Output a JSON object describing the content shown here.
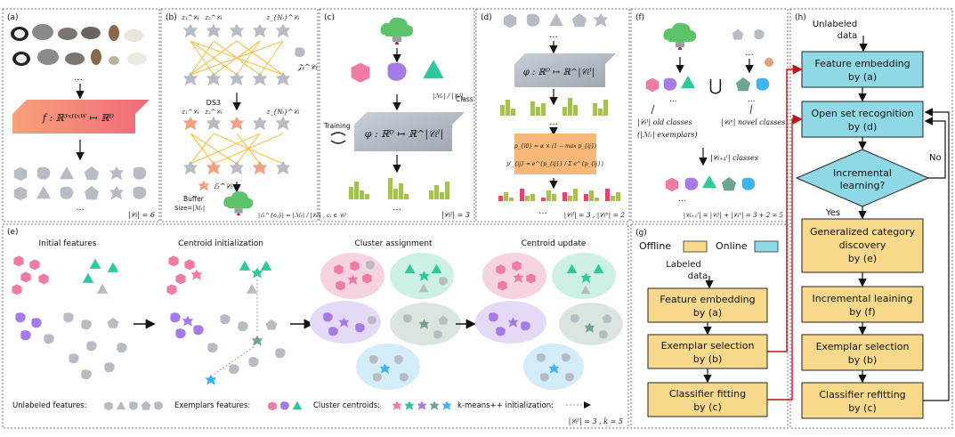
{
  "panels": {
    "a": {
      "tag": "(a)",
      "formula": "f : ℝ³ˣᴴˣᵂ ↦ ℝᴰ",
      "ellipsis": "...",
      "count": "|𝒞ₜ| = 6"
    },
    "b": {
      "tag": "(b)",
      "set_label": "𝒵ₜ^𝒞ₜ",
      "row_labels_top": [
        "z₁^𝒞ₜ",
        "z₂^𝒞ₜ",
        "z_{Nₜ}^𝒞ₜ"
      ],
      "ds3": "DS3",
      "row_labels_bottom": [
        "z₁^𝒞ₜ",
        "z₂^𝒞ₜ",
        "z_{Nₜ}^𝒞ₜ"
      ],
      "exemplar_set": "ℰₜ^𝒞ₜ",
      "buffer": "Buffer",
      "buffer_size": "Size=|ℳᵣ|",
      "formula": "|ℰₜ^{cⱼ}| = |ℳᵣ| / |𝒞ₜˡ| , cⱼ ∈ 𝒞ₜˡ"
    },
    "c": {
      "tag": "(c)",
      "per_class": "|ℳᵣ| / |𝒞ₜˡ|",
      "class_label": "Class",
      "training": "Training",
      "formula": "φ : ℝᴰ ↦ ℝ^|𝒞ₜˡ|",
      "count": "|𝒞ₜˡ| = 3"
    },
    "d": {
      "tag": "(d)",
      "formula": "φ : ℝᴰ ↦ ℝ^|𝒞ₜˡ|",
      "eq1": "p_{i0} = α × (1 − max p_{ij})",
      "eq2": "p'_{ij} = e^{p_{ij}} / Σ e^{p_{ij}}",
      "count": "|𝒞ₜˡ| = 3 , |𝒞ₜⁿ| = 2"
    },
    "f": {
      "tag": "(f)",
      "union": "⋃",
      "old_classes": "|𝒞ₜˡ| old classes",
      "exemplars": "(|ℳᵣ| exemplars)",
      "novel_classes": "|𝒞ₜⁿ| novel classes",
      "next_classes": "|𝒞ₜ₊₁ˡ| classes",
      "count": "|𝒞ₜ₊₁ˡ| = |𝒞ₜˡ| + |𝒞ₜⁿ| = 3 + 2 = 5"
    },
    "e": {
      "tag": "(e)",
      "stages": [
        "Initial features",
        "Centroid initialization",
        "Cluster assignment",
        "Centroid update"
      ],
      "legend_unlabeled": "Unlabeled features:",
      "legend_exemplars": "Exemplars features:",
      "legend_centroids": "Cluster centroids:",
      "legend_kmeans": "k-means++ initialization:",
      "count": "|𝒞ₜˡ| = 3 , k = 5"
    },
    "g": {
      "tag": "(g)",
      "offline": "Offline",
      "online": "Online",
      "labeled": [
        "Labeled",
        "data"
      ],
      "boxes": [
        [
          "Feature embedding",
          "by (a)"
        ],
        [
          "Exemplar selection",
          "by (b)"
        ],
        [
          "Classifier fitting",
          "by (c)"
        ]
      ]
    },
    "h": {
      "tag": "(h)",
      "unlabeled": [
        "Unlabeled",
        "data"
      ],
      "online_boxes": [
        [
          "Feature embedding",
          "by (a)"
        ],
        [
          "Open set recognition",
          "by (d)"
        ]
      ],
      "decision": [
        "Incremental",
        "learning?"
      ],
      "no": "No",
      "yes": "Yes",
      "offline_boxes": [
        [
          "Generalized category",
          "discovery",
          "by (e)"
        ],
        [
          "Incremental leaining",
          "by (f)"
        ],
        [
          "Exemplar selection",
          "by (b)"
        ],
        [
          "Classifier refitting",
          "by (c)"
        ]
      ]
    }
  },
  "colors": {
    "online": "#8fd8e6",
    "offline": "#f8d98c",
    "pink": "#f07aa6",
    "purple": "#a67be8",
    "teal": "#2fc79e",
    "sage": "#6fa58d",
    "blue": "#3fb4ee",
    "gray": "#b7bcc4",
    "connector_red": "#c0151a"
  }
}
